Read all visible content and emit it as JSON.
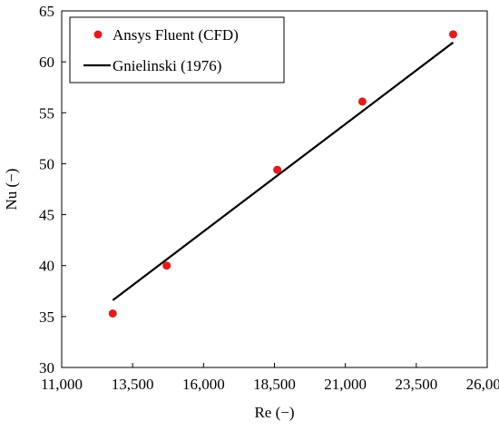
{
  "chart_data": {
    "type": "scatter",
    "title": "",
    "xlabel": "Re (−)",
    "ylabel": "Nu (−)",
    "xlim": [
      11000,
      26000
    ],
    "ylim": [
      30,
      65
    ],
    "x_ticks": [
      11000,
      13500,
      16000,
      18500,
      21000,
      23500,
      26000
    ],
    "x_tick_labels": [
      "11,000",
      "13,500",
      "16,000",
      "18,500",
      "21,000",
      "23,500",
      "26,000"
    ],
    "y_ticks": [
      30,
      35,
      40,
      45,
      50,
      55,
      60,
      65
    ],
    "y_tick_labels": [
      "30",
      "35",
      "40",
      "45",
      "50",
      "55",
      "60",
      "65"
    ],
    "grid": false,
    "legend_position": "top-left",
    "series": [
      {
        "name": "Ansys Fluent (CFD)",
        "kind": "scatter",
        "color": "#e41a1c",
        "marker": "circle",
        "x": [
          12800,
          14700,
          18600,
          21600,
          24800
        ],
        "y": [
          35.3,
          40.0,
          49.4,
          56.1,
          62.7
        ]
      },
      {
        "name": "Gnielinski (1976)",
        "kind": "line",
        "color": "#000000",
        "x": [
          12800,
          24800
        ],
        "y": [
          36.6,
          61.9
        ]
      }
    ]
  }
}
